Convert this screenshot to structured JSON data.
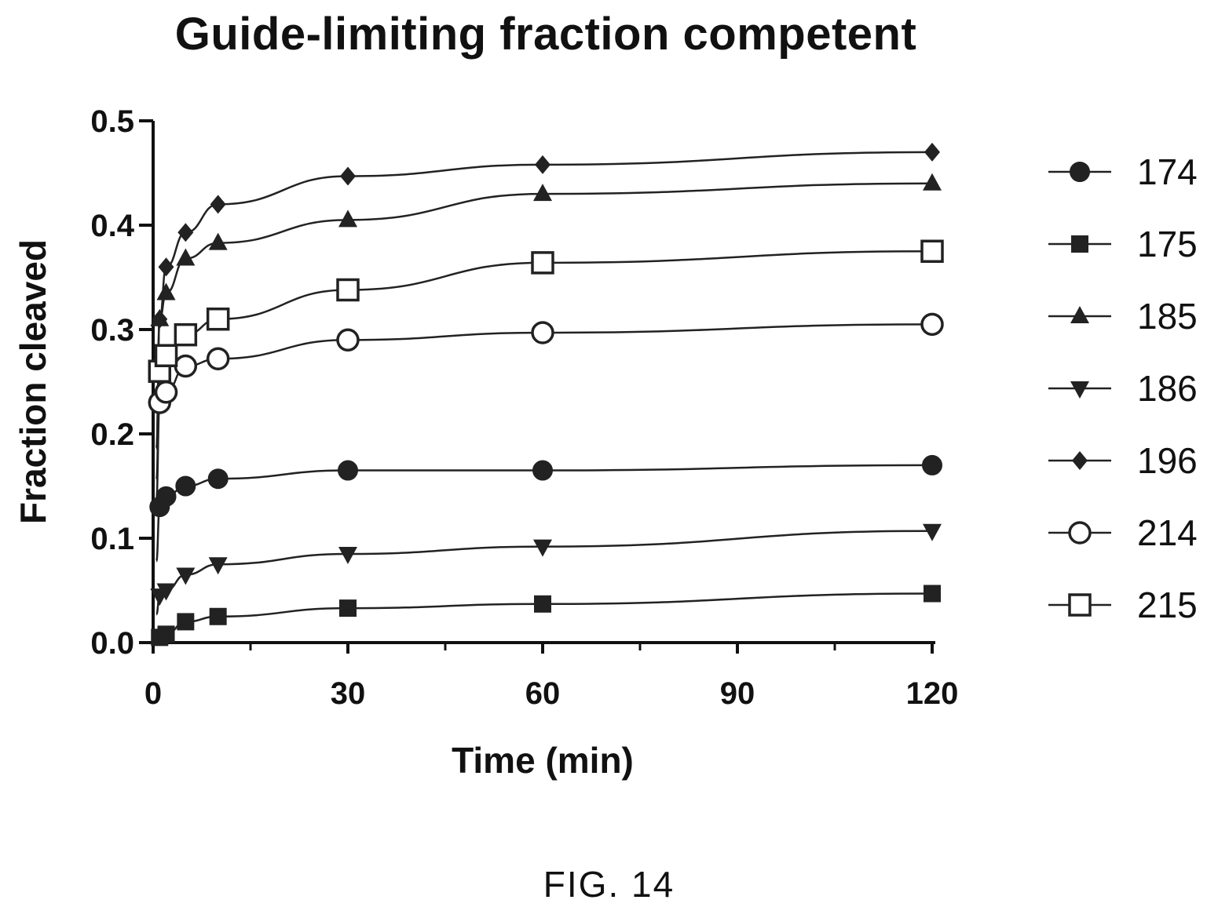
{
  "chart_data": {
    "type": "scatter",
    "title": "Guide-limiting fraction competent",
    "xlabel": "Time (min)",
    "ylabel": "Fraction cleaved",
    "xlim": [
      0,
      120
    ],
    "ylim": [
      0,
      0.5
    ],
    "xticks": [
      "0",
      "30",
      "60",
      "90",
      "120"
    ],
    "yticks": [
      "0.0",
      "0.1",
      "0.2",
      "0.3",
      "0.4",
      "0.5"
    ],
    "legend_position": "right",
    "grid": false,
    "x": [
      1,
      2,
      5,
      10,
      30,
      60,
      120
    ],
    "series": [
      {
        "name": "174",
        "marker": "circle-filled",
        "values": [
          0.13,
          0.14,
          0.15,
          0.157,
          0.165,
          0.165,
          0.17
        ],
        "plateau": 0.166
      },
      {
        "name": "175",
        "marker": "square-filled",
        "values": [
          0.005,
          0.008,
          0.02,
          0.025,
          0.033,
          0.037,
          0.047
        ],
        "plateau": 0.047
      },
      {
        "name": "185",
        "marker": "triangle-up",
        "values": [
          0.31,
          0.335,
          0.368,
          0.383,
          0.405,
          0.43,
          0.44
        ],
        "plateau": 0.44
      },
      {
        "name": "186",
        "marker": "triangle-down",
        "values": [
          0.045,
          0.05,
          0.065,
          0.075,
          0.085,
          0.092,
          0.107
        ],
        "plateau": 0.108
      },
      {
        "name": "196",
        "marker": "diamond",
        "values": [
          0.31,
          0.36,
          0.393,
          0.42,
          0.447,
          0.458,
          0.47
        ],
        "plateau": 0.46
      },
      {
        "name": "214",
        "marker": "circle-open",
        "values": [
          0.23,
          0.24,
          0.265,
          0.272,
          0.29,
          0.297,
          0.305
        ],
        "plateau": 0.3
      },
      {
        "name": "215",
        "marker": "square-open",
        "values": [
          0.26,
          0.275,
          0.295,
          0.31,
          0.338,
          0.364,
          0.375
        ],
        "plateau": 0.377
      }
    ]
  },
  "figure_label": "FIG. 14"
}
